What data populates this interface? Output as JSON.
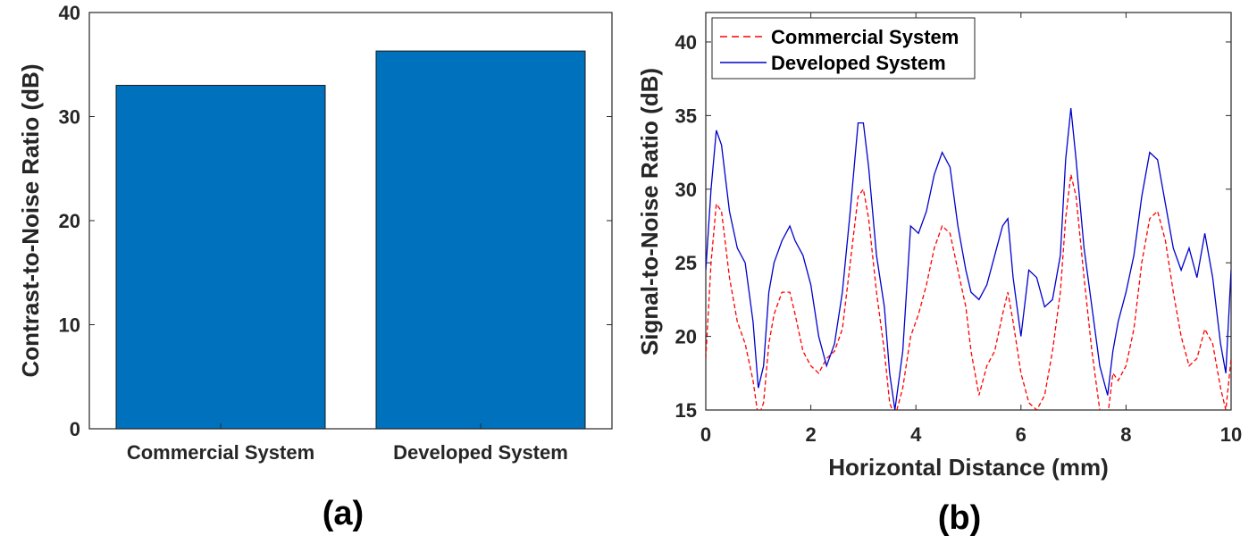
{
  "chart_data": [
    {
      "type": "bar",
      "panel_label": "(a)",
      "categories": [
        "Commercial System",
        "Developed System"
      ],
      "values": [
        33.0,
        36.3
      ],
      "bar_color": "#0072BD",
      "ylabel": "Contrast-to-Noise Ratio (dB)",
      "xlabel": "",
      "ylim": [
        0,
        40
      ],
      "yticks": [
        "0",
        "10",
        "20",
        "30",
        "40"
      ]
    },
    {
      "type": "line",
      "panel_label": "(b)",
      "xlabel": "Horizontal Distance (mm)",
      "ylabel": "Signal-to-Noise Ratio (dB)",
      "xlim": [
        0,
        10
      ],
      "ylim": [
        15,
        42
      ],
      "xticks": [
        "0",
        "2",
        "4",
        "6",
        "8",
        "10"
      ],
      "yticks": [
        "15",
        "20",
        "25",
        "30",
        "35",
        "40"
      ],
      "legend_position": "top-left",
      "series": [
        {
          "name": "Commercial System",
          "color": "#ff0000",
          "style": "dashed",
          "x": [
            0,
            0.1,
            0.2,
            0.3,
            0.45,
            0.6,
            0.75,
            0.9,
            1.0,
            1.1,
            1.2,
            1.3,
            1.45,
            1.6,
            1.7,
            1.85,
            2.0,
            2.15,
            2.3,
            2.45,
            2.6,
            2.75,
            2.9,
            3.0,
            3.1,
            3.25,
            3.4,
            3.5,
            3.6,
            3.75,
            3.9,
            4.05,
            4.2,
            4.35,
            4.5,
            4.65,
            4.8,
            4.95,
            5.05,
            5.2,
            5.35,
            5.5,
            5.65,
            5.75,
            5.85,
            6.0,
            6.15,
            6.3,
            6.45,
            6.6,
            6.75,
            6.85,
            6.95,
            7.05,
            7.2,
            7.35,
            7.5,
            7.65,
            7.75,
            7.85,
            8.0,
            8.15,
            8.3,
            8.45,
            8.6,
            8.75,
            8.9,
            9.05,
            9.2,
            9.35,
            9.5,
            9.65,
            9.8,
            9.9,
            10.0
          ],
          "y": [
            18.5,
            25.0,
            29.0,
            28.5,
            24.0,
            21.0,
            19.5,
            17.0,
            14.5,
            15.5,
            19.5,
            21.5,
            23.0,
            23.0,
            21.5,
            19.0,
            18.0,
            17.5,
            18.5,
            19.0,
            20.5,
            25.0,
            29.5,
            30.0,
            28.0,
            23.0,
            19.0,
            15.5,
            14.5,
            16.5,
            20.0,
            21.5,
            23.5,
            26.0,
            27.5,
            27.0,
            24.5,
            22.0,
            19.0,
            16.0,
            18.0,
            19.0,
            21.5,
            23.0,
            21.0,
            17.5,
            15.5,
            15.0,
            16.0,
            19.0,
            23.0,
            28.0,
            31.0,
            29.5,
            24.0,
            19.0,
            15.0,
            14.5,
            17.5,
            17.0,
            18.0,
            20.5,
            25.0,
            28.0,
            28.5,
            26.5,
            23.0,
            20.0,
            18.0,
            18.5,
            20.5,
            19.5,
            16.5,
            15.0,
            18.5
          ]
        },
        {
          "name": "Developed System",
          "color": "#0000cc",
          "style": "solid",
          "x": [
            0,
            0.1,
            0.2,
            0.3,
            0.45,
            0.6,
            0.75,
            0.9,
            1.0,
            1.1,
            1.2,
            1.3,
            1.45,
            1.6,
            1.7,
            1.85,
            2.0,
            2.15,
            2.3,
            2.45,
            2.6,
            2.75,
            2.9,
            3.0,
            3.1,
            3.25,
            3.4,
            3.5,
            3.6,
            3.75,
            3.9,
            4.05,
            4.2,
            4.35,
            4.5,
            4.65,
            4.8,
            4.95,
            5.05,
            5.2,
            5.35,
            5.5,
            5.65,
            5.75,
            5.85,
            6.0,
            6.15,
            6.3,
            6.45,
            6.6,
            6.75,
            6.85,
            6.95,
            7.05,
            7.2,
            7.35,
            7.5,
            7.65,
            7.75,
            7.85,
            8.0,
            8.15,
            8.3,
            8.45,
            8.6,
            8.75,
            8.9,
            9.05,
            9.2,
            9.35,
            9.5,
            9.65,
            9.8,
            9.9,
            10.0
          ],
          "y": [
            24.5,
            30.0,
            34.0,
            33.0,
            28.5,
            26.0,
            25.0,
            21.0,
            16.5,
            18.0,
            23.0,
            25.0,
            26.5,
            27.5,
            26.5,
            25.5,
            23.5,
            20.0,
            18.0,
            19.5,
            23.0,
            28.5,
            34.5,
            34.5,
            31.5,
            25.5,
            22.0,
            17.5,
            15.0,
            19.0,
            27.5,
            27.0,
            28.5,
            31.0,
            32.5,
            31.5,
            27.5,
            24.5,
            23.0,
            22.5,
            23.5,
            25.5,
            27.5,
            28.0,
            24.0,
            20.0,
            24.5,
            24.0,
            22.0,
            22.5,
            25.5,
            32.0,
            35.5,
            32.0,
            26.0,
            22.0,
            18.0,
            16.0,
            19.0,
            21.0,
            23.0,
            25.5,
            29.5,
            32.5,
            32.0,
            29.0,
            26.0,
            24.5,
            26.0,
            24.0,
            27.0,
            24.0,
            19.5,
            17.5,
            24.5
          ]
        }
      ]
    }
  ]
}
